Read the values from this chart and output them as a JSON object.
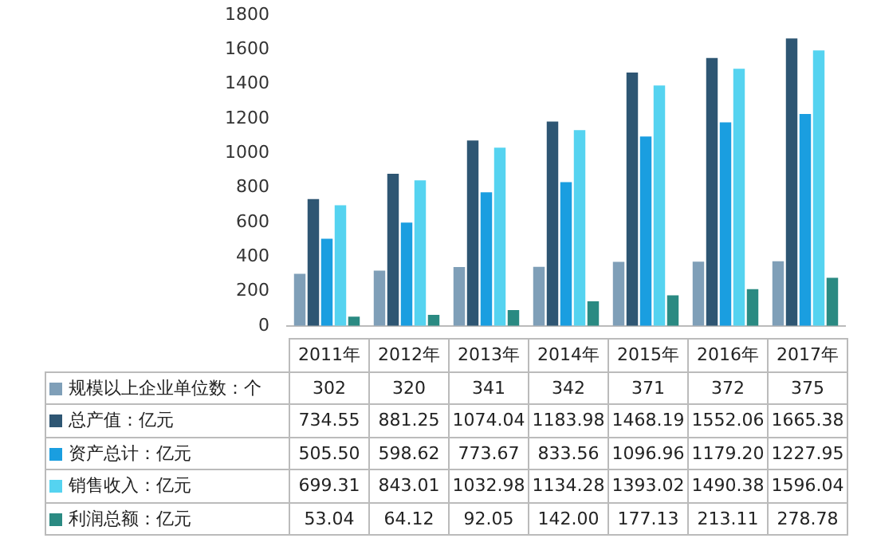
{
  "chart_data": {
    "type": "bar",
    "categories": [
      "2011年",
      "2012年",
      "2013年",
      "2014年",
      "2015年",
      "2016年",
      "2017年"
    ],
    "series": [
      {
        "name": "规模以上企业单位数：个",
        "color": "#7f9fb8",
        "values": [
          302,
          320,
          341,
          342,
          371,
          372,
          375
        ],
        "value_labels": [
          "302",
          "320",
          "341",
          "342",
          "371",
          "372",
          "375"
        ]
      },
      {
        "name": "总产值：亿元",
        "color": "#2e5673",
        "values": [
          734.55,
          881.25,
          1074.04,
          1183.98,
          1468.19,
          1552.06,
          1665.38
        ],
        "value_labels": [
          "734.55",
          "881.25",
          "1074.04",
          "1183.98",
          "1468.19",
          "1552.06",
          "1665.38"
        ]
      },
      {
        "name": "资产总计：亿元",
        "color": "#1a9ee0",
        "values": [
          505.5,
          598.62,
          773.67,
          833.56,
          1096.96,
          1179.2,
          1227.95
        ],
        "value_labels": [
          "505.50",
          "598.62",
          "773.67",
          "833.56",
          "1096.96",
          "1179.20",
          "1227.95"
        ]
      },
      {
        "name": "销售收入：亿元",
        "color": "#55d3f0",
        "values": [
          699.31,
          843.01,
          1032.98,
          1134.28,
          1393.02,
          1490.38,
          1596.04
        ],
        "value_labels": [
          "699.31",
          "843.01",
          "1032.98",
          "1134.28",
          "1393.02",
          "1490.38",
          "1596.04"
        ]
      },
      {
        "name": "利润总额：亿元",
        "color": "#2a8a82",
        "values": [
          53.04,
          64.12,
          92.05,
          142,
          177.13,
          213.11,
          278.78
        ],
        "value_labels": [
          "53.04",
          "64.12",
          "92.05",
          "142.00",
          "177.13",
          "213.11",
          "278.78"
        ]
      }
    ],
    "ylim": [
      0,
      1800
    ],
    "yticks": [
      0,
      200,
      400,
      600,
      800,
      1000,
      1200,
      1400,
      1600,
      1800
    ],
    "grid": false,
    "legend": "bottom"
  }
}
